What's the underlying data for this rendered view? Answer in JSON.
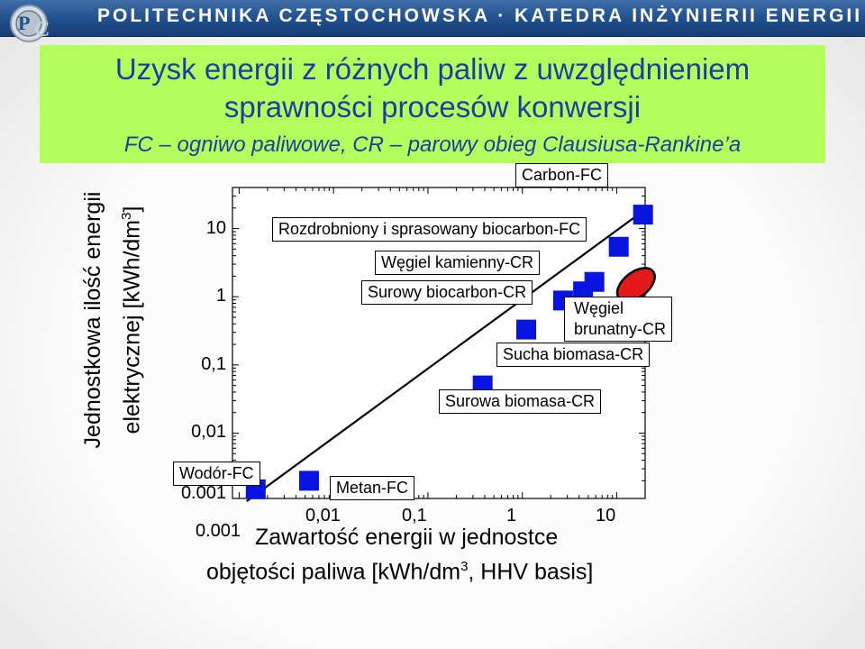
{
  "header": {
    "institution": "POLITECHNIKA CZĘSTOCHOWSKA · KATEDRA INŻYNIERII ENERGII"
  },
  "title": {
    "line1": "Uzysk energii z różnych paliw z uwzględnieniem",
    "line2": "sprawności procesów konwersji",
    "line3": "FC – ogniwo paliwowe, CR – parowy obieg Clausiusa-Rankine’a"
  },
  "colors": {
    "header_bg": "#1f4f8c",
    "title_bg": "#b5ff5c",
    "title_text": "#1b3da6",
    "marker": "#0a14e0",
    "ellipse": "#e41a1a"
  },
  "chart_data": {
    "type": "scatter",
    "scale": "log-log",
    "title": "",
    "xlabel": "Zawartość energii w jednostce objętości paliwa [kWh/dm3, HHV basis]",
    "ylabel": "Jednostkowa ilość energii elektrycznej [kWh/dm3]",
    "xlabel_line1": "Zawartość energii w jednostce",
    "xlabel_line2_pre": "objętości paliwa [kWh/dm",
    "xlabel_line2_sup": "3",
    "xlabel_line2_post": ", HHV basis]",
    "ylabel_line1": "Jednostkowa ilość energii",
    "ylabel_line2_pre": "elektrycznej [kWh/dm",
    "ylabel_line2_sup": "3",
    "ylabel_line2_post": "]",
    "xlim": [
      0.00085,
      20
    ],
    "ylim": [
      0.0011,
      40
    ],
    "x_ticks": [
      {
        "value": 0.001,
        "label": "0.001"
      },
      {
        "value": 0.01,
        "label": "0,01"
      },
      {
        "value": 0.1,
        "label": "0,1"
      },
      {
        "value": 1,
        "label": "1"
      },
      {
        "value": 10,
        "label": "10"
      }
    ],
    "y_ticks": [
      {
        "value": 0.001,
        "label": "0.001"
      },
      {
        "value": 0.01,
        "label": "0,01"
      },
      {
        "value": 0.1,
        "label": "0,1"
      },
      {
        "value": 1,
        "label": "1"
      },
      {
        "value": 10,
        "label": "10"
      }
    ],
    "points": [
      {
        "label": "Wodór-FC",
        "x": 0.0015,
        "y": 0.0015
      },
      {
        "label": "Metan-FC",
        "x": 0.0055,
        "y": 0.002
      },
      {
        "label": "Surowa biomasa-CR",
        "x": 0.38,
        "y": 0.05
      },
      {
        "label": "Sucha biomasa-CR",
        "x": 1.1,
        "y": 0.33
      },
      {
        "label": "Surowy biocarbon-CR",
        "x": 2.7,
        "y": 0.88
      },
      {
        "label": "Węgiel kamienny-CR",
        "x": 4.4,
        "y": 1.2
      },
      {
        "label": "Węgiel kamienny-CR 2",
        "x": 5.8,
        "y": 1.65
      },
      {
        "label": "Rozdrobniony i sprasowany biocarbon-FC",
        "x": 10.5,
        "y": 5.4
      },
      {
        "label": "Carbon-FC",
        "x": 19,
        "y": 16
      }
    ],
    "regions": [
      {
        "label": "Węgiel brunatny-CR",
        "x": 16,
        "y": 1.5
      }
    ],
    "fit_line": [
      [
        0.0012,
        0.001
      ],
      [
        20,
        19
      ]
    ],
    "annotations": {
      "carbon_fc": "Carbon-FC",
      "rozdrobniony": "Rozdrobniony i sprasowany biocarbon-FC",
      "wegiel_kamienny": "Węgiel kamienny-CR",
      "surowy_biocarbon": "Surowy biocarbon-CR",
      "wegiel_brunatny_1": "Węgiel",
      "wegiel_brunatny_2": "brunatny-CR",
      "sucha_biomasa": "Sucha biomasa-CR",
      "surowa_biomasa": "Surowa biomasa-CR",
      "wodor": "Wodór-FC",
      "metan": "Metan-FC"
    }
  }
}
